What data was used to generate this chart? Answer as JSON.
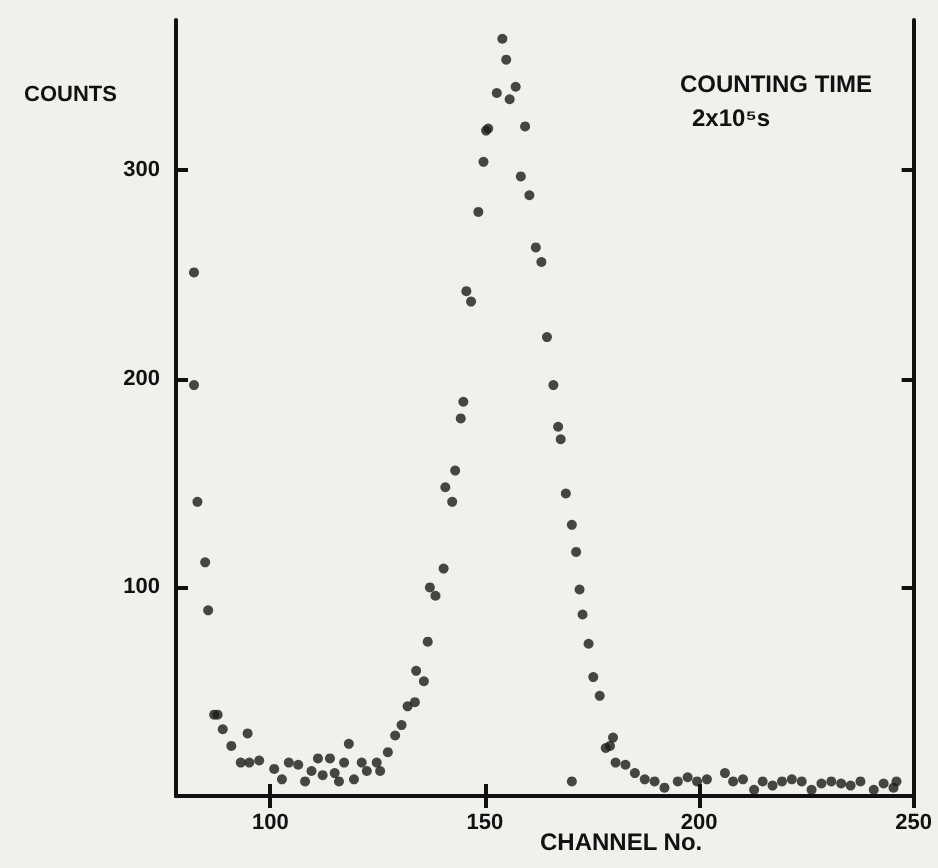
{
  "chart_data": {
    "type": "scatter",
    "xlabel": "CHANNEL No.",
    "ylabel": "COUNTS",
    "annotations": [
      "COUNTING TIME",
      "2x10⁵s"
    ],
    "x": [
      82.2,
      82.2,
      83,
      84.8,
      85.5,
      86.9,
      87.7,
      88.9,
      90.9,
      94.7,
      93.1,
      95.1,
      97.4,
      100.9,
      102.7,
      104.3,
      106.5,
      108.1,
      109.6,
      111.1,
      112.2,
      113.9,
      115,
      116,
      117.2,
      118.3,
      119.5,
      121.3,
      122.5,
      124.8,
      125.6,
      127.4,
      129.1,
      130.6,
      132,
      133.7,
      134,
      135.8,
      136.7,
      137.2,
      138.5,
      140.4,
      140.8,
      142.4,
      143.1,
      144.4,
      145,
      145.7,
      146.8,
      148.5,
      149.7,
      150.3,
      150.8,
      152.8,
      154.1,
      155,
      155.8,
      157.2,
      158.4,
      159.4,
      160.4,
      161.9,
      163.2,
      164.5,
      166,
      167.1,
      167.7,
      168.9,
      170.3,
      171.3,
      172.1,
      172.8,
      174.2,
      175.3,
      176.8,
      178.2,
      179.2,
      179.9,
      170.3,
      180.5,
      182.8,
      185,
      187.3,
      189.6,
      191.9,
      195,
      197.3,
      199.5,
      201.8,
      206,
      207.9,
      210.2,
      212.8,
      214.8,
      217.1,
      219.3,
      221.6,
      223.9,
      226.2,
      228.5,
      230.8,
      233.1,
      235.3,
      237.6,
      240.7,
      243,
      245.3,
      246
    ],
    "values": [
      251,
      197,
      141,
      112,
      89,
      39,
      39,
      32,
      24,
      30,
      16,
      16,
      17,
      13,
      8,
      16,
      15,
      7,
      12,
      18,
      10,
      18,
      11,
      7,
      16,
      25,
      8,
      16,
      12,
      16,
      12,
      21,
      29,
      34,
      43,
      45,
      60,
      55,
      74,
      100,
      96,
      109,
      148,
      141,
      156,
      181,
      189,
      242,
      237,
      280,
      304,
      319,
      320,
      337,
      363,
      353,
      334,
      340,
      297,
      321,
      288,
      263,
      256,
      220,
      197,
      177,
      171,
      145,
      130,
      117,
      99,
      87,
      73,
      57,
      48,
      23,
      24,
      28,
      7,
      16,
      15,
      11,
      8,
      7,
      4,
      7,
      9,
      7,
      8,
      11,
      7,
      8,
      3,
      7,
      5,
      7,
      8,
      7,
      3,
      6,
      7,
      6,
      5,
      7,
      3,
      6,
      4,
      7
    ],
    "color": "#1a1a1a",
    "marker": "circle",
    "xlim": [
      78,
      250
    ],
    "ylim": [
      0,
      372
    ],
    "xticks": [
      100,
      150,
      200,
      250
    ],
    "yticks": [
      100,
      200,
      300
    ],
    "grid": false
  }
}
